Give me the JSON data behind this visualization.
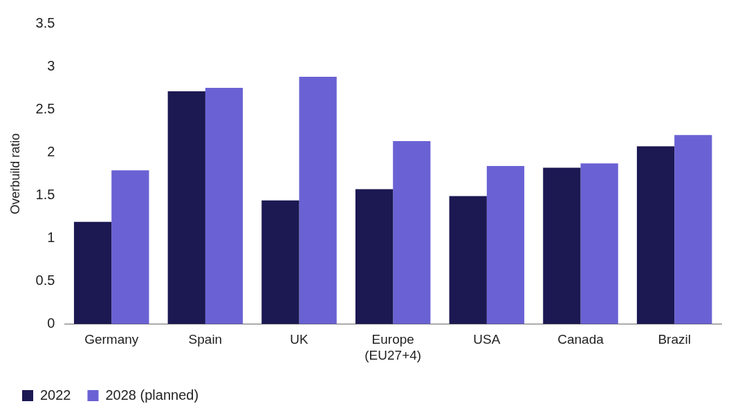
{
  "chart_data": {
    "type": "bar",
    "ylabel": "Overbuild ratio",
    "categories": [
      "Germany",
      "Spain",
      "UK",
      "Europe (EU27+4)",
      "USA",
      "Canada",
      "Brazil"
    ],
    "series": [
      {
        "name": "2022",
        "color": "#1c1852",
        "values": [
          1.19,
          2.71,
          1.44,
          1.57,
          1.49,
          1.82,
          2.07
        ]
      },
      {
        "name": "2028 (planned)",
        "color": "#6a62d4",
        "values": [
          1.79,
          2.75,
          2.88,
          2.13,
          1.84,
          1.87,
          2.2
        ]
      }
    ],
    "ylim": [
      0,
      3.5
    ],
    "yticks": [
      0,
      0.5,
      1,
      1.5,
      2,
      2.5,
      3,
      3.5
    ],
    "grid": false,
    "legend": "bottom"
  }
}
